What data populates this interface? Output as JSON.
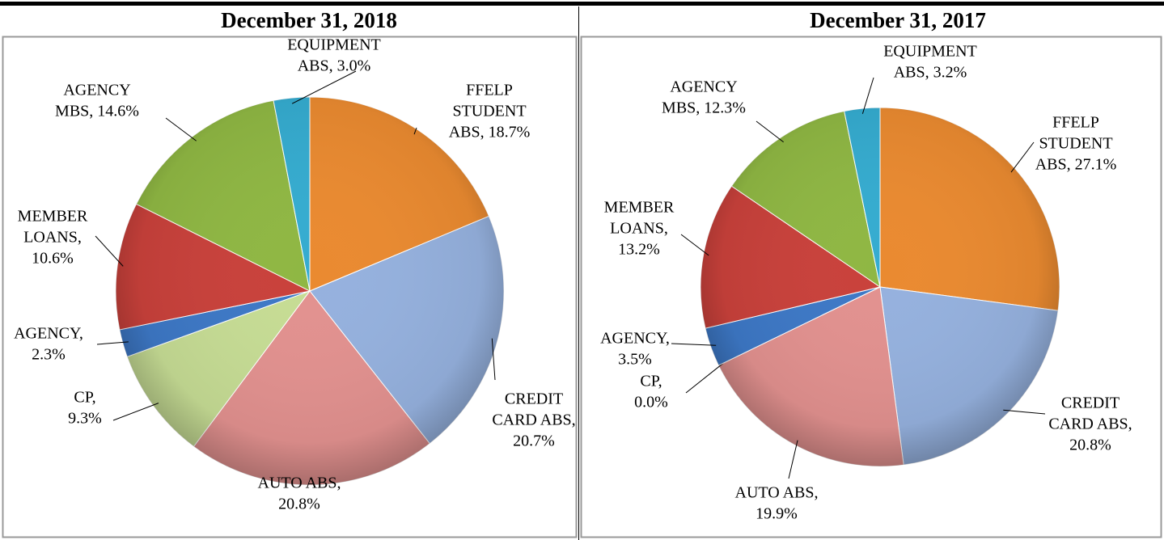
{
  "chart_data": [
    {
      "type": "pie",
      "title": "December 31, 2018",
      "values": [
        18.7,
        20.7,
        20.8,
        9.3,
        2.3,
        10.6,
        14.6,
        3.0
      ],
      "value_labels": [
        [
          "FFELP",
          "STUDENT",
          "ABS, 18.7%"
        ],
        [
          "CREDIT",
          "CARD ABS,",
          "20.7%"
        ],
        [
          "AUTO ABS,",
          "20.8%"
        ],
        [
          "CP,",
          "9.3%"
        ],
        [
          "AGENCY,",
          "2.3%"
        ],
        [
          "MEMBER",
          "LOANS,",
          "10.6%"
        ],
        [
          "AGENCY",
          "MBS, 14.6%"
        ],
        [
          "EQUIPMENT",
          "ABS, 3.0%"
        ]
      ],
      "colors": [
        "#ea8a30",
        "#95b1de",
        "#e2918f",
        "#c6dc94",
        "#3d78c6",
        "#c9413b",
        "#8fb743",
        "#35acd0"
      ]
    },
    {
      "type": "pie",
      "title": "December 31, 2017",
      "values": [
        27.1,
        20.8,
        19.9,
        0.0,
        3.5,
        13.2,
        12.3,
        3.2
      ],
      "value_labels": [
        [
          "FFELP",
          "STUDENT",
          "ABS, 27.1%"
        ],
        [
          "CREDIT",
          "CARD ABS,",
          "20.8%"
        ],
        [
          "AUTO ABS,",
          "19.9%"
        ],
        [
          "CP,",
          "0.0%"
        ],
        [
          "AGENCY,",
          "3.5%"
        ],
        [
          "MEMBER",
          "LOANS,",
          "13.2%"
        ],
        [
          "AGENCY",
          "MBS, 12.3%"
        ],
        [
          "EQUIPMENT",
          "ABS, 3.2%"
        ]
      ],
      "colors": [
        "#ea8a30",
        "#95b1de",
        "#e2918f",
        "#c6dc94",
        "#3d78c6",
        "#c9413b",
        "#8fb743",
        "#35acd0"
      ]
    }
  ]
}
